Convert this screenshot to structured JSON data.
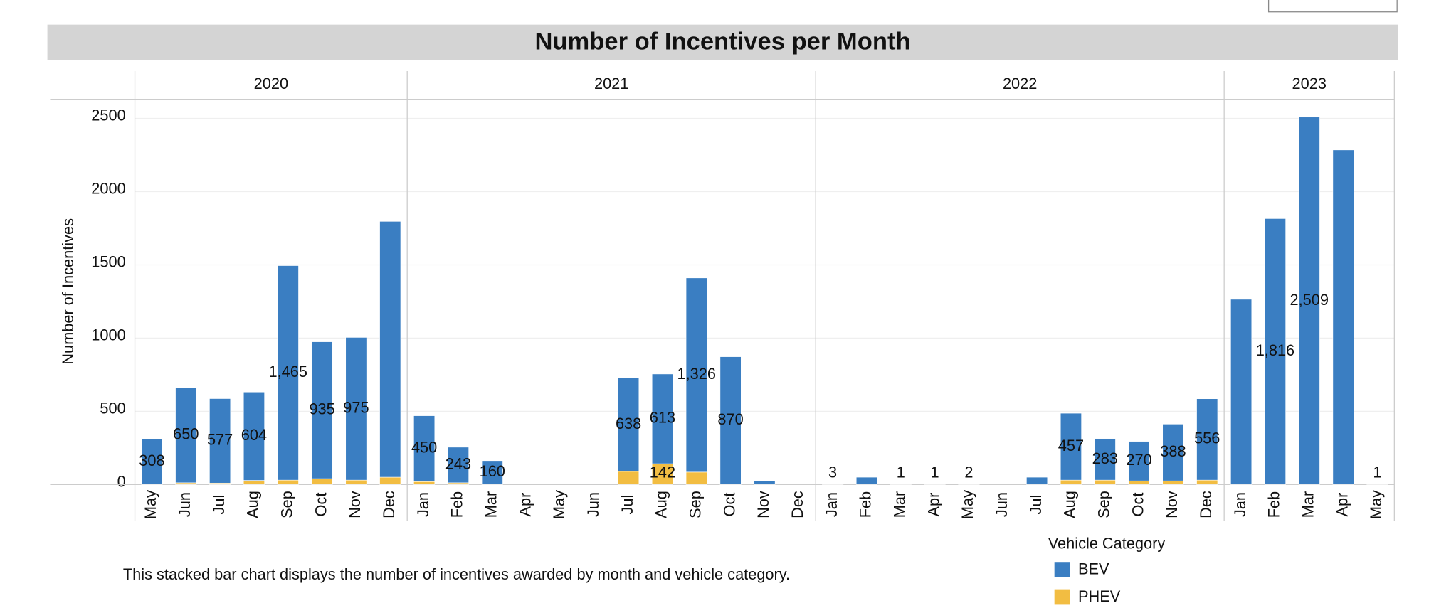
{
  "chart_data": {
    "type": "bar",
    "stacked": true,
    "title": "Number of Incentives per Month",
    "ylabel": "Number of Incentives",
    "groups": [
      {
        "label": "2020",
        "categories": [
          "May",
          "Jun",
          "Jul",
          "Aug",
          "Sep",
          "Oct",
          "Nov",
          "Dec"
        ]
      },
      {
        "label": "2021",
        "categories": [
          "Jan",
          "Feb",
          "Mar",
          "Apr",
          "May",
          "Jun",
          "Jul",
          "Aug",
          "Sep",
          "Oct",
          "Nov",
          "Dec"
        ]
      },
      {
        "label": "2022",
        "categories": [
          "Jan",
          "Feb",
          "Mar",
          "Apr",
          "May",
          "Jun",
          "Jul",
          "Aug",
          "Sep",
          "Oct",
          "Nov",
          "Dec"
        ]
      },
      {
        "label": "2023",
        "categories": [
          "Jan",
          "Feb",
          "Mar",
          "Apr",
          "May"
        ]
      }
    ],
    "series": [
      {
        "name": "BEV",
        "color": "#3a7ec2",
        "values": [
          308,
          650,
          577,
          604,
          1465,
          935,
          975,
          1747,
          450,
          243,
          160,
          null,
          null,
          null,
          638,
          613,
          1326,
          870,
          25,
          null,
          3,
          50,
          1,
          1,
          2,
          null,
          50,
          457,
          283,
          270,
          388,
          556,
          1265,
          1816,
          2509,
          2285,
          1
        ],
        "value_labels": [
          "308",
          "650",
          "577",
          "604",
          "1,465",
          "935",
          "975",
          null,
          "450",
          "243",
          "160",
          null,
          null,
          null,
          "638",
          "613",
          "1,326",
          "870",
          null,
          null,
          "3",
          null,
          "1",
          "1",
          "2",
          null,
          null,
          "457",
          "283",
          "270",
          "388",
          "556",
          null,
          "1,816",
          "2,509",
          null,
          "1"
        ]
      },
      {
        "name": "PHEV",
        "color": "#f2bd42",
        "values": [
          3,
          12,
          10,
          28,
          30,
          40,
          30,
          50,
          20,
          12,
          3,
          null,
          null,
          null,
          90,
          142,
          85,
          3,
          null,
          null,
          null,
          null,
          null,
          null,
          null,
          null,
          null,
          30,
          30,
          25,
          25,
          30,
          null,
          null,
          null,
          null,
          null
        ],
        "value_labels": [
          null,
          null,
          null,
          null,
          null,
          null,
          null,
          null,
          null,
          null,
          null,
          null,
          null,
          null,
          null,
          "142",
          null,
          null,
          null,
          null,
          null,
          null,
          null,
          null,
          null,
          null,
          null,
          null,
          null,
          null,
          null,
          null,
          null,
          null,
          null,
          null,
          null
        ]
      }
    ],
    "ylim": [
      0,
      2630
    ],
    "yticks": [
      0,
      500,
      1000,
      1500,
      2000,
      2500
    ],
    "grid": true,
    "legend_title": "Vehicle Category",
    "description": "This stacked bar chart displays the number of incentives awarded by month and vehicle category."
  }
}
